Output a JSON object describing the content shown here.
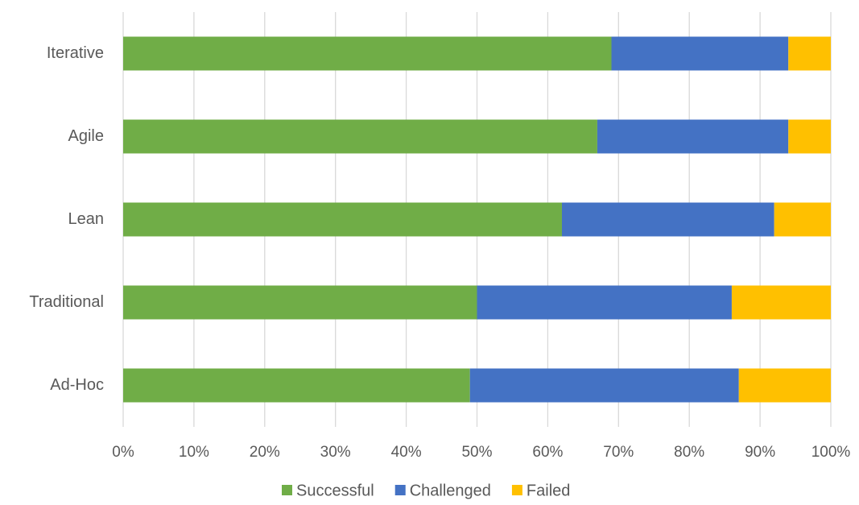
{
  "chart_data": {
    "type": "stacked_barh",
    "categories": [
      "Iterative",
      "Agile",
      "Lean",
      "Traditional",
      "Ad-Hoc"
    ],
    "series": [
      {
        "name": "Successful",
        "color": "#70ad47",
        "values": [
          69,
          67,
          62,
          50,
          49
        ]
      },
      {
        "name": "Challenged",
        "color": "#4472c4",
        "values": [
          25,
          27,
          30,
          36,
          38
        ]
      },
      {
        "name": "Failed",
        "color": "#ffc000",
        "values": [
          6,
          6,
          8,
          14,
          13
        ]
      }
    ],
    "xlim": [
      0,
      100
    ],
    "xticks": [
      {
        "value": 0,
        "label": "0%"
      },
      {
        "value": 10,
        "label": "10%"
      },
      {
        "value": 20,
        "label": "20%"
      },
      {
        "value": 30,
        "label": "30%"
      },
      {
        "value": 40,
        "label": "40%"
      },
      {
        "value": 50,
        "label": "50%"
      },
      {
        "value": 60,
        "label": "60%"
      },
      {
        "value": 70,
        "label": "70%"
      },
      {
        "value": 80,
        "label": "80%"
      },
      {
        "value": 90,
        "label": "90%"
      },
      {
        "value": 100,
        "label": "100%"
      }
    ],
    "grid": true,
    "legend": "bottom"
  }
}
